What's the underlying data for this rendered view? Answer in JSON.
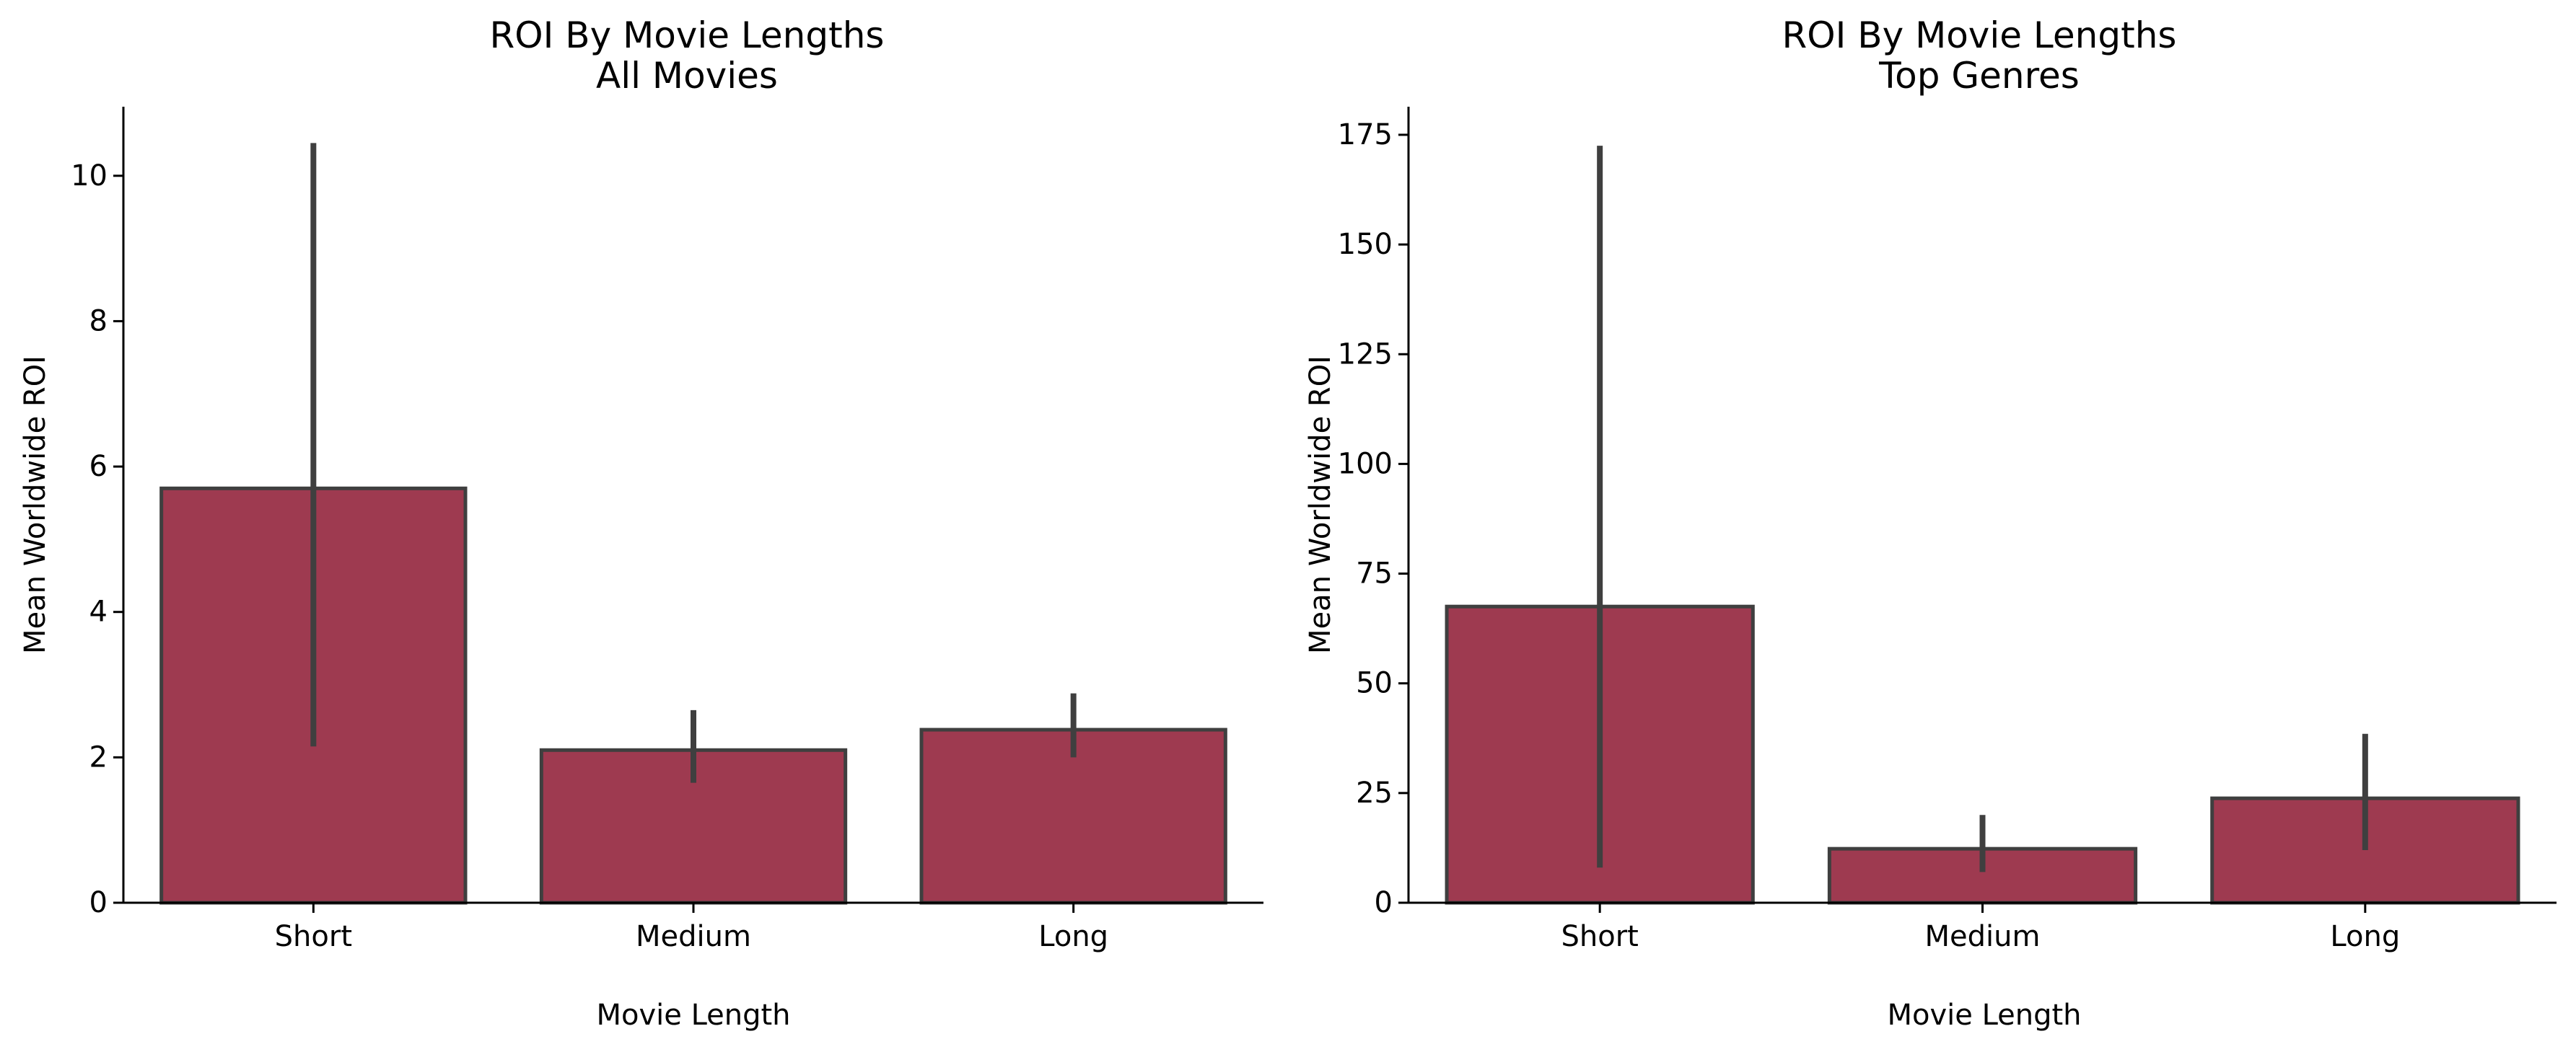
{
  "colors": {
    "bar_fill": "#9e3a50",
    "bar_edge": "#3f3f3f",
    "error_bar": "#3f3f3f",
    "axis": "#000000",
    "background": "#ffffff"
  },
  "chart_data": [
    {
      "type": "bar",
      "title": "ROI By Movie Lengths\nAll Movies",
      "title_lines": [
        "ROI By Movie Lengths",
        "All Movies"
      ],
      "xlabel": "Movie Length",
      "ylabel": "Mean Worldwide ROI",
      "categories": [
        "Short",
        "Medium",
        "Long"
      ],
      "values": [
        5.7,
        2.1,
        2.38
      ],
      "error_low": [
        2.15,
        1.65,
        2.0
      ],
      "error_high": [
        10.45,
        2.65,
        2.88
      ],
      "ylim": [
        0,
        10.95
      ],
      "yticks": [
        0,
        2,
        4,
        6,
        8,
        10
      ],
      "grid": false,
      "legend": "none"
    },
    {
      "type": "bar",
      "title": "ROI By Movie Lengths\nTop Genres",
      "title_lines": [
        "ROI By Movie Lengths",
        "Top Genres"
      ],
      "xlabel": "Movie Length",
      "ylabel": "Mean Worldwide ROI",
      "categories": [
        "Short",
        "Medium",
        "Long"
      ],
      "values": [
        67.5,
        12.3,
        23.8
      ],
      "error_low": [
        8.0,
        7.0,
        12.0
      ],
      "error_high": [
        172.5,
        20.0,
        38.5
      ],
      "ylim": [
        0,
        181.4
      ],
      "yticks": [
        0,
        25,
        50,
        75,
        100,
        125,
        150,
        175
      ],
      "grid": false,
      "legend": "none"
    }
  ]
}
